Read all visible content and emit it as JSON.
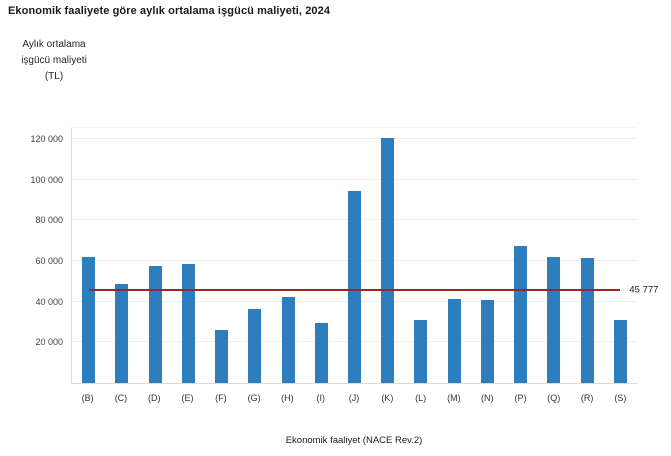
{
  "header": {
    "title": "Ekonomik faaliyete göre aylık ortalama işgücü maliyeti, 2024"
  },
  "y_axis": {
    "title_lines": [
      "Aylık ortalama",
      "işgücü maliyeti",
      "(TL)"
    ],
    "tick_labels": [
      "120 000",
      "100 000",
      "80 000",
      "60 000",
      "40 000",
      "20 000"
    ],
    "tick_values": [
      120000,
      100000,
      80000,
      60000,
      40000,
      20000
    ]
  },
  "x_axis": {
    "title": "Ekonomik faaliyet (NACE Rev.2)"
  },
  "average_line": {
    "label": "45 777",
    "value": 45777
  },
  "colors": {
    "bar": "#2e7dbd",
    "average_line": "#a02424",
    "grid": "#ededed",
    "axis": "#d9d9d9",
    "text": "#262626"
  },
  "chart_data": {
    "type": "bar",
    "title": "Ekonomik faaliyete göre aylık ortalama işgücü maliyeti, 2024",
    "xlabel": "Ekonomik faaliyet (NACE Rev.2)",
    "ylabel": "Aylık ortalama işgücü maliyeti (TL)",
    "categories": [
      "(B)",
      "(C)",
      "(D)",
      "(E)",
      "(F)",
      "(G)",
      "(H)",
      "(I)",
      "(J)",
      "(K)",
      "(L)",
      "(M)",
      "(N)",
      "(P)",
      "(Q)",
      "(R)",
      "(S)"
    ],
    "values": [
      62000,
      48500,
      57500,
      58500,
      26000,
      36500,
      42500,
      29500,
      94500,
      120500,
      31000,
      41500,
      41000,
      67500,
      62000,
      61500,
      31000
    ],
    "ylim": [
      0,
      125400
    ],
    "grid": true,
    "legend": false,
    "reference_line": {
      "value": 45777,
      "label": "45 777"
    }
  }
}
